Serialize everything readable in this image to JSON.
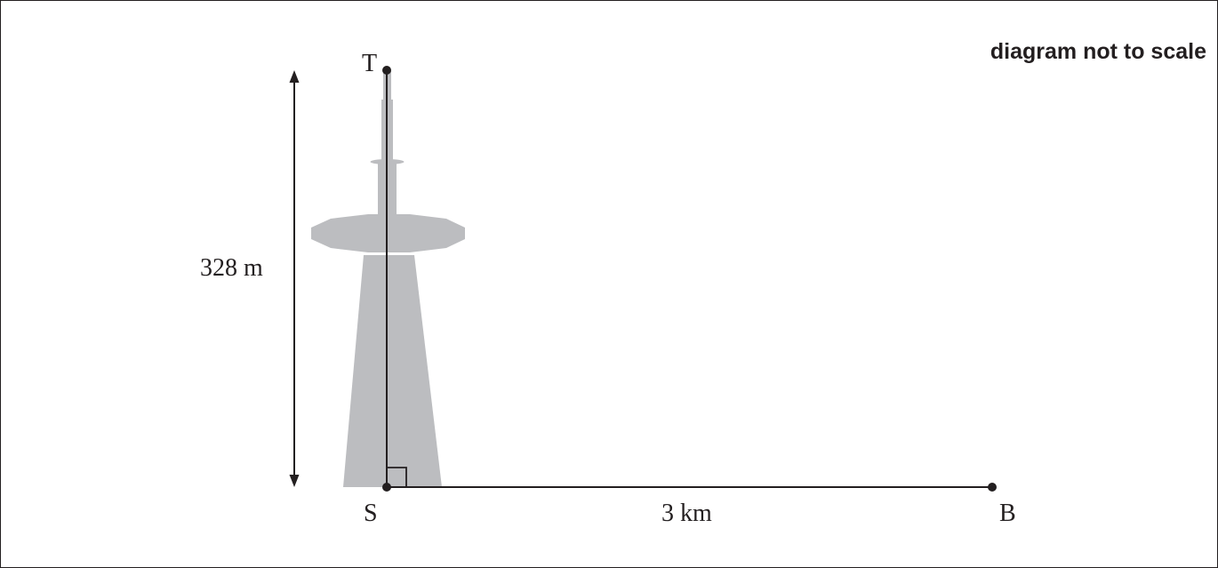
{
  "diagram": {
    "note": "diagram not to scale",
    "points": {
      "top": "T",
      "base": "S",
      "far": "B"
    },
    "height_label": "328 m",
    "distance_label": "3 km",
    "colors": {
      "ink": "#231f20",
      "tower": "#bcbdc0",
      "background": "#ffffff"
    },
    "right_angle_at": "S"
  }
}
